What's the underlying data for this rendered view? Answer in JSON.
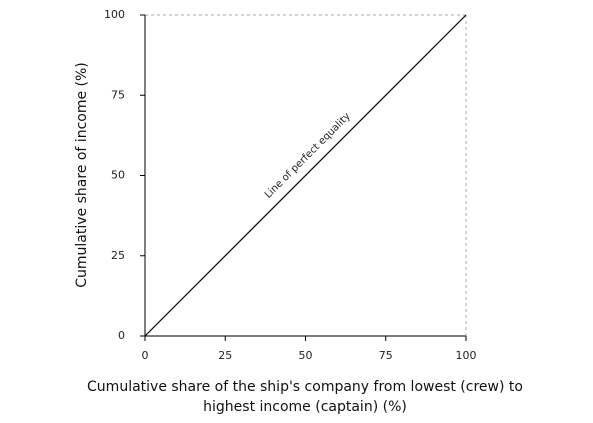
{
  "chart_data": {
    "type": "line",
    "x_label": "Cumulative share of the ship's company from lowest (crew) to highest income (captain) (%)",
    "y_label": "Cumulative share of income (%)",
    "annotation": "Line of perfect equality",
    "x": [
      0,
      100
    ],
    "values": [
      0,
      100
    ],
    "color": "#000000",
    "xlim": [
      0,
      100
    ],
    "ylim": [
      0,
      100
    ],
    "xticks": [
      0,
      25,
      50,
      75,
      100
    ],
    "yticks": [
      0,
      25,
      50,
      75,
      100
    ],
    "frame_color": "#aaaaaa"
  }
}
